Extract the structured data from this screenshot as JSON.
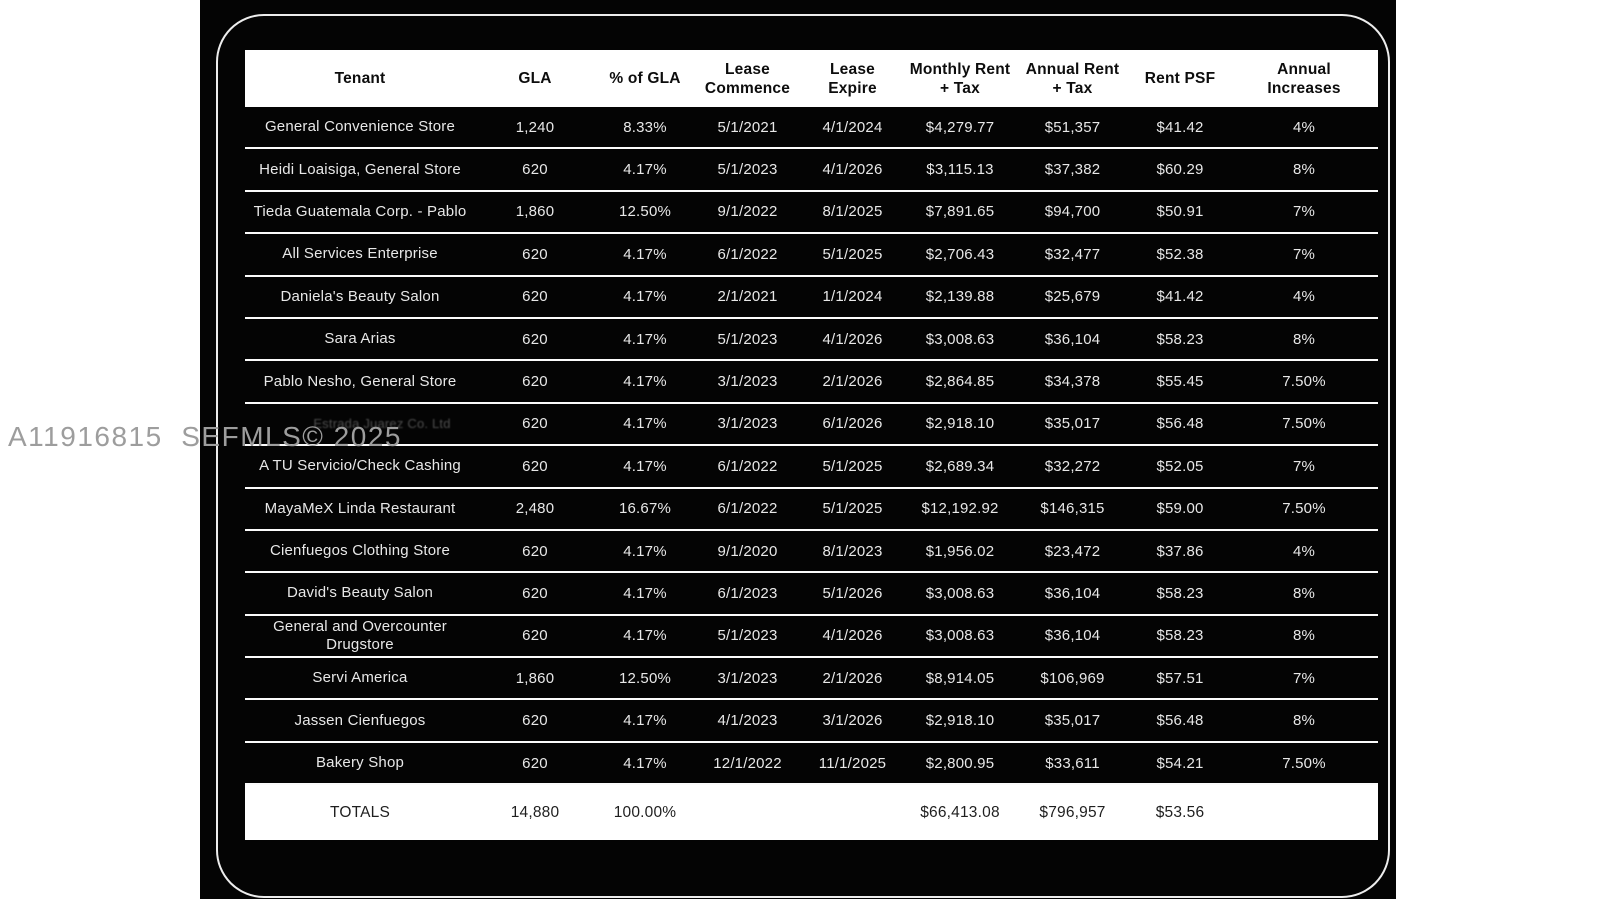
{
  "watermark": {
    "text": "A11916815  SEFMLS© 2025"
  },
  "colors": {
    "page_background": "#ffffff",
    "card_background": "#040404",
    "outline": "#ededed",
    "header_background": "#ffffff",
    "row_text": "#e8e8e8",
    "separator": "#fbfbfb"
  },
  "table": {
    "headers": [
      "Tenant",
      "GLA",
      "% of GLA",
      "Lease\nCommence",
      "Lease\nExpire",
      "Monthly Rent\n+ Tax",
      "Annual Rent\n+ Tax",
      "Rent PSF",
      "Annual\nIncreases"
    ],
    "rows": [
      {
        "tenant": "General Convenience Store",
        "gla": "1,240",
        "gla_pct": "8.33%",
        "lease_commence": "5/1/2021",
        "lease_expire": "4/1/2024",
        "monthly_rent": "$4,279.77",
        "annual_rent": "$51,357",
        "rent_psf": "$41.42",
        "annual_increase": "4%"
      },
      {
        "tenant": "Heidi Loaisiga, General Store",
        "gla": "620",
        "gla_pct": "4.17%",
        "lease_commence": "5/1/2023",
        "lease_expire": "4/1/2026",
        "monthly_rent": "$3,115.13",
        "annual_rent": "$37,382",
        "rent_psf": "$60.29",
        "annual_increase": "8%"
      },
      {
        "tenant": "Tieda Guatemala Corp. - Pablo",
        "gla": "1,860",
        "gla_pct": "12.50%",
        "lease_commence": "9/1/2022",
        "lease_expire": "8/1/2025",
        "monthly_rent": "$7,891.65",
        "annual_rent": "$94,700",
        "rent_psf": "$50.91",
        "annual_increase": "7%"
      },
      {
        "tenant": "All Services Enterprise",
        "gla": "620",
        "gla_pct": "4.17%",
        "lease_commence": "6/1/2022",
        "lease_expire": "5/1/2025",
        "monthly_rent": "$2,706.43",
        "annual_rent": "$32,477",
        "rent_psf": "$52.38",
        "annual_increase": "7%"
      },
      {
        "tenant": "Daniela's Beauty Salon",
        "gla": "620",
        "gla_pct": "4.17%",
        "lease_commence": "2/1/2021",
        "lease_expire": "1/1/2024",
        "monthly_rent": "$2,139.88",
        "annual_rent": "$25,679",
        "rent_psf": "$41.42",
        "annual_increase": "4%"
      },
      {
        "tenant": "Sara Arias",
        "gla": "620",
        "gla_pct": "4.17%",
        "lease_commence": "5/1/2023",
        "lease_expire": "4/1/2026",
        "monthly_rent": "$3,008.63",
        "annual_rent": "$36,104",
        "rent_psf": "$58.23",
        "annual_increase": "8%"
      },
      {
        "tenant": "Pablo Nesho, General Store",
        "gla": "620",
        "gla_pct": "4.17%",
        "lease_commence": "3/1/2023",
        "lease_expire": "2/1/2026",
        "monthly_rent": "$2,864.85",
        "annual_rent": "$34,378",
        "rent_psf": "$55.45",
        "annual_increase": "7.50%"
      },
      {
        "tenant": "Estrada Juarez Co. Ltd",
        "tenant_obscured": true,
        "gla": "620",
        "gla_pct": "4.17%",
        "lease_commence": "3/1/2023",
        "lease_expire": "6/1/2026",
        "monthly_rent": "$2,918.10",
        "annual_rent": "$35,017",
        "rent_psf": "$56.48",
        "annual_increase": "7.50%"
      },
      {
        "tenant": "A TU Servicio/Check Cashing",
        "gla": "620",
        "gla_pct": "4.17%",
        "lease_commence": "6/1/2022",
        "lease_expire": "5/1/2025",
        "monthly_rent": "$2,689.34",
        "annual_rent": "$32,272",
        "rent_psf": "$52.05",
        "annual_increase": "7%"
      },
      {
        "tenant": "MayaMeX Linda Restaurant",
        "gla": "2,480",
        "gla_pct": "16.67%",
        "lease_commence": "6/1/2022",
        "lease_expire": "5/1/2025",
        "monthly_rent": "$12,192.92",
        "annual_rent": "$146,315",
        "rent_psf": "$59.00",
        "annual_increase": "7.50%"
      },
      {
        "tenant": "Cienfuegos Clothing Store",
        "gla": "620",
        "gla_pct": "4.17%",
        "lease_commence": "9/1/2020",
        "lease_expire": "8/1/2023",
        "monthly_rent": "$1,956.02",
        "annual_rent": "$23,472",
        "rent_psf": "$37.86",
        "annual_increase": "4%"
      },
      {
        "tenant": "David's Beauty Salon",
        "gla": "620",
        "gla_pct": "4.17%",
        "lease_commence": "6/1/2023",
        "lease_expire": "5/1/2026",
        "monthly_rent": "$3,008.63",
        "annual_rent": "$36,104",
        "rent_psf": "$58.23",
        "annual_increase": "8%"
      },
      {
        "tenant": "General and Overcounter Drugstore",
        "gla": "620",
        "gla_pct": "4.17%",
        "lease_commence": "5/1/2023",
        "lease_expire": "4/1/2026",
        "monthly_rent": "$3,008.63",
        "annual_rent": "$36,104",
        "rent_psf": "$58.23",
        "annual_increase": "8%"
      },
      {
        "tenant": "Servi America",
        "gla": "1,860",
        "gla_pct": "12.50%",
        "lease_commence": "3/1/2023",
        "lease_expire": "2/1/2026",
        "monthly_rent": "$8,914.05",
        "annual_rent": "$106,969",
        "rent_psf": "$57.51",
        "annual_increase": "7%"
      },
      {
        "tenant": "Jassen Cienfuegos",
        "gla": "620",
        "gla_pct": "4.17%",
        "lease_commence": "4/1/2023",
        "lease_expire": "3/1/2026",
        "monthly_rent": "$2,918.10",
        "annual_rent": "$35,017",
        "rent_psf": "$56.48",
        "annual_increase": "8%"
      },
      {
        "tenant": "Bakery Shop",
        "gla": "620",
        "gla_pct": "4.17%",
        "lease_commence": "12/1/2022",
        "lease_expire": "11/1/2025",
        "monthly_rent": "$2,800.95",
        "annual_rent": "$33,611",
        "rent_psf": "$54.21",
        "annual_increase": "7.50%"
      }
    ],
    "totals": {
      "tenant": "TOTALS",
      "gla": "14,880",
      "gla_pct": "100.00%",
      "lease_commence": "",
      "lease_expire": "",
      "monthly_rent": "$66,413.08",
      "annual_rent": "$796,957",
      "rent_psf": "$53.56",
      "annual_increase": ""
    }
  }
}
